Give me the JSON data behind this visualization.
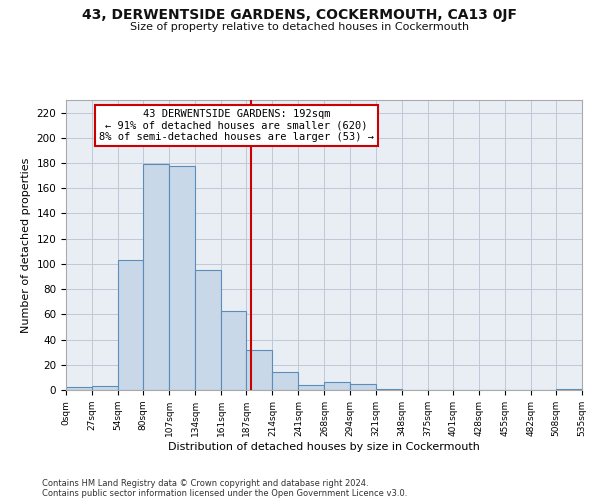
{
  "title": "43, DERWENTSIDE GARDENS, COCKERMOUTH, CA13 0JF",
  "subtitle": "Size of property relative to detached houses in Cockermouth",
  "xlabel": "Distribution of detached houses by size in Cockermouth",
  "ylabel": "Number of detached properties",
  "footer_line1": "Contains HM Land Registry data © Crown copyright and database right 2024.",
  "footer_line2": "Contains public sector information licensed under the Open Government Licence v3.0.",
  "bar_edges": [
    0,
    27,
    54,
    80,
    107,
    134,
    161,
    187,
    214,
    241,
    268,
    294,
    321,
    348,
    375,
    401,
    428,
    455,
    482,
    508,
    535
  ],
  "bar_heights": [
    2,
    3,
    103,
    179,
    178,
    95,
    63,
    32,
    14,
    4,
    6,
    5,
    1,
    0,
    0,
    0,
    0,
    0,
    0,
    1
  ],
  "bar_color": "#c8d8e8",
  "bar_edge_color": "#5b8db8",
  "vline_x": 192,
  "vline_color": "#cc0000",
  "annotation_text": "43 DERWENTSIDE GARDENS: 192sqm\n← 91% of detached houses are smaller (620)\n8% of semi-detached houses are larger (53) →",
  "annotation_box_color": "#ffffff",
  "annotation_box_edge": "#cc0000",
  "annotation_fontsize": 7.5,
  "grid_color": "#c0c8d8",
  "bg_color": "#e8eef4",
  "tick_labels": [
    "0sqm",
    "27sqm",
    "54sqm",
    "80sqm",
    "107sqm",
    "134sqm",
    "161sqm",
    "187sqm",
    "214sqm",
    "241sqm",
    "268sqm",
    "294sqm",
    "321sqm",
    "348sqm",
    "375sqm",
    "401sqm",
    "428sqm",
    "455sqm",
    "482sqm",
    "508sqm",
    "535sqm"
  ],
  "ylim": [
    0,
    230
  ],
  "yticks": [
    0,
    20,
    40,
    60,
    80,
    100,
    120,
    140,
    160,
    180,
    200,
    220
  ]
}
